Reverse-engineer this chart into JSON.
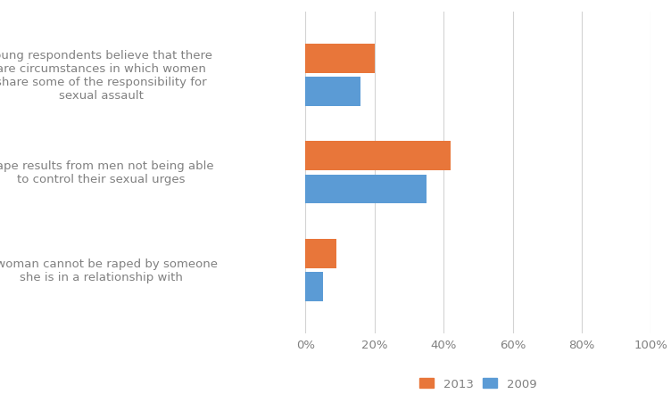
{
  "categories": [
    "Young respondents believe that there\nare circumstances in which women\nshare some of the responsibility for\nsexual assault",
    "Rape results from men not being able\nto control their sexual urges",
    "A woman cannot be raped by someone\nshe is in a relationship with"
  ],
  "values_2013": [
    0.2,
    0.42,
    0.09
  ],
  "values_2009": [
    0.16,
    0.35,
    0.05
  ],
  "color_2013": "#E8763A",
  "color_2009": "#5B9BD5",
  "xlim": [
    0.0,
    1.0
  ],
  "xticks": [
    0.0,
    0.2,
    0.4,
    0.6,
    0.8,
    1.0
  ],
  "xticklabels": [
    "0%",
    "20%",
    "40%",
    "60%",
    "80%",
    "100%"
  ],
  "bar_height": 0.3,
  "legend_labels": [
    "2013",
    "2009"
  ],
  "background_color": "#ffffff",
  "grid_color": "#d3d3d3",
  "label_color": "#808080",
  "tick_color": "#808080",
  "font_size": 9.5,
  "label_font_size": 9.5
}
